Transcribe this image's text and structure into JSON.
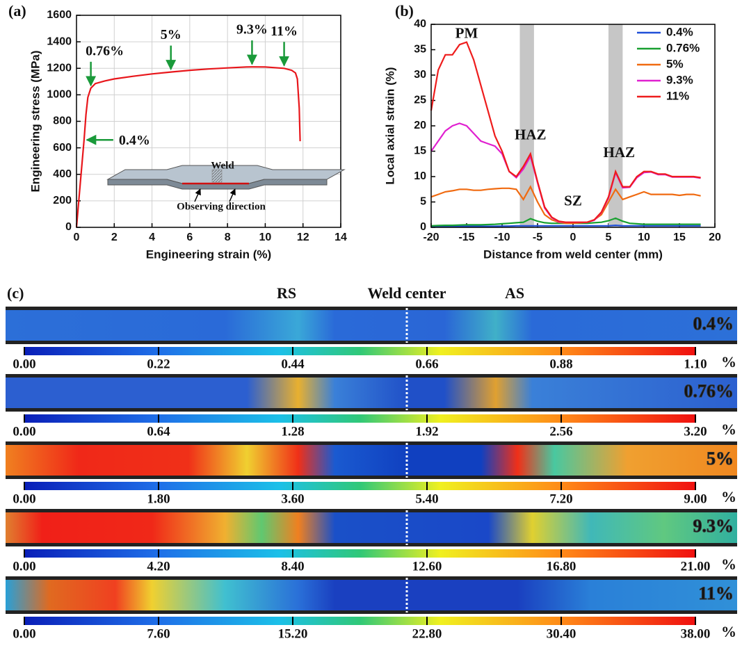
{
  "chart_data": [
    {
      "type": "line",
      "panel": "(a)",
      "x_label": "Engineering strain (%)",
      "y_label": "Engineering stress (MPa)",
      "xlim": [
        0,
        14
      ],
      "xticks": [
        0,
        2,
        4,
        6,
        8,
        10,
        12,
        14
      ],
      "ylim": [
        0,
        1600
      ],
      "yticks": [
        0,
        200,
        400,
        600,
        800,
        1000,
        1200,
        1400,
        1600
      ],
      "grid": true,
      "x": [
        0,
        0.2,
        0.4,
        0.5,
        0.6,
        0.76,
        1,
        1.5,
        2,
        3,
        4,
        5,
        6,
        7,
        8,
        9,
        9.3,
        10,
        11,
        11.4,
        11.6,
        11.7,
        11.8,
        11.85
      ],
      "series": [
        {
          "color": "#e8161b",
          "values": [
            0,
            330,
            660,
            850,
            980,
            1050,
            1085,
            1105,
            1120,
            1140,
            1158,
            1172,
            1185,
            1195,
            1203,
            1210,
            1211,
            1210,
            1200,
            1185,
            1165,
            1120,
            900,
            650
          ]
        }
      ],
      "annotations": [
        "0.76%",
        "5%",
        "9.3%",
        "11%",
        "0.4%"
      ],
      "inset_labels": [
        "Weld",
        "Observing direction"
      ]
    },
    {
      "type": "line",
      "panel": "(b)",
      "x_label": "Distance from weld center (mm)",
      "y_label": "Local axial strain (%)",
      "xlim": [
        -20,
        20
      ],
      "xticks": [
        -20,
        -15,
        -10,
        -5,
        0,
        5,
        10,
        15,
        20
      ],
      "ylim": [
        0,
        40
      ],
      "yticks": [
        0,
        5,
        10,
        15,
        20,
        25,
        30,
        35,
        40
      ],
      "grid": false,
      "legend": "upper right",
      "x": [
        -20,
        -19,
        -18,
        -17,
        -16,
        -15,
        -14,
        -13,
        -12,
        -11,
        -10,
        -9,
        -8,
        -7,
        -6,
        -5,
        -4,
        -3,
        -2,
        -1,
        0,
        1,
        2,
        3,
        4,
        5,
        6,
        7,
        8,
        9,
        10,
        11,
        12,
        13,
        14,
        15,
        16,
        17,
        18
      ],
      "series": [
        {
          "name": "0.4%",
          "color": "#1f4fd8",
          "values": [
            0.2,
            0.2,
            0.2,
            0.2,
            0.2,
            0.2,
            0.2,
            0.2,
            0.2,
            0.2,
            0.25,
            0.25,
            0.3,
            0.3,
            0.3,
            0.3,
            0.3,
            0.3,
            0.3,
            0.3,
            0.3,
            0.3,
            0.3,
            0.3,
            0.3,
            0.3,
            0.4,
            0.3,
            0.3,
            0.3,
            0.3,
            0.3,
            0.3,
            0.3,
            0.3,
            0.3,
            0.3,
            0.3,
            0.3
          ]
        },
        {
          "name": "0.76%",
          "color": "#18a030",
          "values": [
            0.3,
            0.35,
            0.4,
            0.4,
            0.45,
            0.5,
            0.5,
            0.5,
            0.55,
            0.6,
            0.7,
            0.8,
            0.9,
            1,
            1.7,
            1.2,
            0.9,
            0.8,
            0.8,
            0.8,
            0.8,
            0.8,
            0.8,
            0.9,
            1,
            1.3,
            1.8,
            1.2,
            0.8,
            0.7,
            0.6,
            0.6,
            0.6,
            0.6,
            0.6,
            0.6,
            0.6,
            0.6,
            0.6
          ]
        },
        {
          "name": "5%",
          "color": "#f06a10",
          "values": [
            6,
            6.5,
            7,
            7.2,
            7.5,
            7.5,
            7.3,
            7.3,
            7.5,
            7.6,
            7.7,
            7.7,
            7.5,
            5.5,
            8,
            5,
            2.5,
            1.5,
            1,
            0.8,
            0.8,
            0.9,
            1,
            1.5,
            2.5,
            5,
            7.5,
            5.5,
            6,
            6.5,
            7,
            6.5,
            6.5,
            6.5,
            6.5,
            6.3,
            6.5,
            6.5,
            6.2
          ]
        },
        {
          "name": "9.3%",
          "color": "#e020d0",
          "values": [
            15,
            17,
            19,
            20,
            20.5,
            20,
            18.5,
            17,
            16.5,
            16,
            14.5,
            11,
            9.8,
            11.5,
            14,
            8.8,
            3.8,
            1.9,
            1.1,
            1,
            1,
            1,
            1,
            1.4,
            2.9,
            5.8,
            10.8,
            7.8,
            7.9,
            9.8,
            10.8,
            10.9,
            10.4,
            10.4,
            9.9,
            9.9,
            9.9,
            9.9,
            9.7
          ]
        },
        {
          "name": "11%",
          "color": "#ee1c1c",
          "values": [
            23,
            31,
            34,
            34,
            36,
            36.5,
            33,
            28,
            23,
            18,
            15,
            11,
            10,
            12,
            14.5,
            9,
            4,
            2,
            1.2,
            1,
            1,
            1,
            1,
            1.5,
            3,
            6,
            11,
            8,
            8,
            10,
            11,
            11,
            10.5,
            10.5,
            10,
            10,
            10,
            10,
            9.8
          ]
        }
      ],
      "annotations": [
        "PM",
        "HAZ",
        "SZ",
        "HAZ"
      ]
    },
    {
      "type": "strain-map",
      "panel": "(c)",
      "annotations": [
        "RS",
        "Weld center",
        "AS"
      ],
      "maps": [
        {
          "label": "0.4%",
          "unit": "%",
          "clim": [
            0,
            1.1
          ],
          "ticks": [
            {
              "value": 0,
              "label": "0.00"
            },
            {
              "value": 0.22,
              "label": "0.22"
            },
            {
              "value": 0.44,
              "label": "0.44"
            },
            {
              "value": 0.66,
              "label": "0.66"
            },
            {
              "value": 0.88,
              "label": "0.88"
            },
            {
              "value": 1.1,
              "label": "1.10"
            }
          ]
        },
        {
          "label": "0.76%",
          "unit": "%",
          "clim": [
            0,
            3.2
          ],
          "ticks": [
            {
              "value": 0,
              "label": "0.00"
            },
            {
              "value": 0.64,
              "label": "0.64"
            },
            {
              "value": 1.28,
              "label": "1.28"
            },
            {
              "value": 1.92,
              "label": "1.92"
            },
            {
              "value": 2.56,
              "label": "2.56"
            },
            {
              "value": 3.2,
              "label": "3.20"
            }
          ]
        },
        {
          "label": "5%",
          "unit": "%",
          "clim": [
            0,
            9
          ],
          "ticks": [
            {
              "value": 0,
              "label": "0.00"
            },
            {
              "value": 1.8,
              "label": "1.80"
            },
            {
              "value": 3.6,
              "label": "3.60"
            },
            {
              "value": 5.4,
              "label": "5.40"
            },
            {
              "value": 7.2,
              "label": "7.20"
            },
            {
              "value": 9,
              "label": "9.00"
            }
          ]
        },
        {
          "label": "9.3%",
          "unit": "%",
          "clim": [
            0,
            21
          ],
          "ticks": [
            {
              "value": 0,
              "label": "0.00"
            },
            {
              "value": 4.2,
              "label": "4.20"
            },
            {
              "value": 8.4,
              "label": "8.40"
            },
            {
              "value": 12.6,
              "label": "12.60"
            },
            {
              "value": 16.8,
              "label": "16.80"
            },
            {
              "value": 21,
              "label": "21.00"
            }
          ]
        },
        {
          "label": "11%",
          "unit": "%",
          "clim": [
            0,
            38
          ],
          "ticks": [
            {
              "value": 0,
              "label": "0.00"
            },
            {
              "value": 7.6,
              "label": "7.60"
            },
            {
              "value": 15.2,
              "label": "15.20"
            },
            {
              "value": 22.8,
              "label": "22.80"
            },
            {
              "value": 30.4,
              "label": "30.40"
            },
            {
              "value": 38,
              "label": "38.00"
            }
          ]
        }
      ]
    }
  ]
}
